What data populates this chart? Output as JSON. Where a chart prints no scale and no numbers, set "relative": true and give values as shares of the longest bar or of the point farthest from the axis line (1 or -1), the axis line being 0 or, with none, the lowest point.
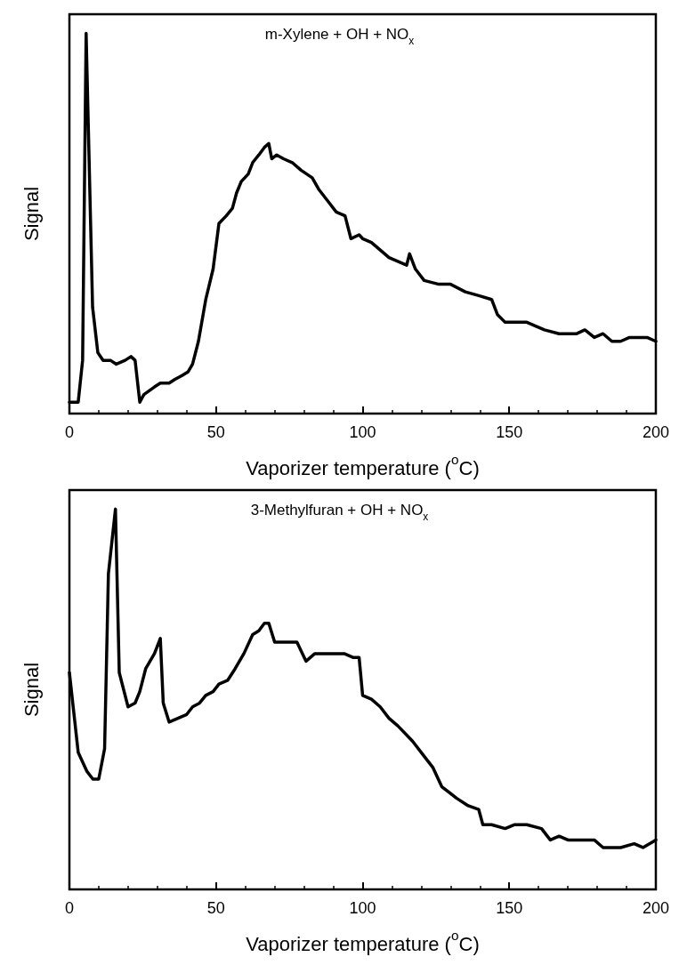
{
  "chart_data": [
    {
      "type": "line",
      "title": "m-Xylene + OH + NO$_{x}$",
      "xlabel": "Vaporizer temperature ($^{o}$C)",
      "ylabel": "Signal",
      "relative": true,
      "xlim": [
        0,
        200
      ],
      "xticks": [
        0,
        50,
        100,
        150,
        200
      ],
      "grid": false,
      "marker": "none",
      "line_style": "solid",
      "series": [
        {
          "color": "#000000",
          "x": [
            0,
            3,
            4.5,
            5.7,
            7.9,
            9.7,
            11.5,
            14,
            16,
            19,
            21,
            22.4,
            24,
            25.4,
            29,
            31,
            34,
            36,
            38.4,
            40.5,
            42,
            44,
            46.5,
            49,
            51,
            53.5,
            55.6,
            57,
            58.6,
            61,
            62.5,
            64.6,
            66.5,
            68,
            69,
            70.7,
            73,
            76,
            79,
            82.8,
            85,
            88,
            91,
            94,
            96,
            98.8,
            100,
            103,
            106,
            109,
            112,
            115,
            116,
            118,
            121,
            126,
            130,
            135,
            139.6,
            144,
            146,
            148.6,
            153,
            156,
            159,
            162,
            167,
            173,
            175.8,
            179,
            182,
            185,
            188,
            191,
            194,
            197,
            200
          ],
          "values": [
            0.03,
            0.03,
            0.14,
            1.0,
            0.28,
            0.16,
            0.14,
            0.14,
            0.13,
            0.14,
            0.15,
            0.14,
            0.03,
            0.05,
            0.07,
            0.08,
            0.08,
            0.09,
            0.1,
            0.11,
            0.13,
            0.19,
            0.3,
            0.38,
            0.5,
            0.52,
            0.54,
            0.58,
            0.61,
            0.63,
            0.66,
            0.68,
            0.7,
            0.71,
            0.67,
            0.68,
            0.67,
            0.66,
            0.64,
            0.62,
            0.59,
            0.56,
            0.53,
            0.52,
            0.46,
            0.47,
            0.46,
            0.45,
            0.43,
            0.41,
            0.4,
            0.39,
            0.42,
            0.38,
            0.35,
            0.34,
            0.34,
            0.32,
            0.31,
            0.3,
            0.26,
            0.24,
            0.24,
            0.24,
            0.23,
            0.22,
            0.21,
            0.21,
            0.22,
            0.2,
            0.21,
            0.19,
            0.19,
            0.2,
            0.2,
            0.2,
            0.19
          ]
        }
      ]
    },
    {
      "type": "line",
      "title": "3-Methylfuran + OH + NO$_{x}$",
      "xlabel": "Vaporizer temperature ($^{o}$C)",
      "ylabel": "Signal",
      "relative": true,
      "xlim": [
        0,
        200
      ],
      "xticks": [
        0,
        50,
        100,
        150,
        200
      ],
      "grid": false,
      "marker": "none",
      "line_style": "solid",
      "series": [
        {
          "color": "#000000",
          "x": [
            0,
            3,
            6,
            8,
            10,
            12,
            13.3,
            15.7,
            17,
            20,
            22.4,
            24,
            26,
            29,
            31,
            32,
            34,
            37,
            40,
            42,
            44.4,
            46.5,
            49,
            51,
            54,
            56.5,
            59.5,
            62.5,
            64.6,
            66.5,
            68,
            70,
            73,
            77.6,
            80.7,
            83.7,
            88,
            93.7,
            96.7,
            98.8,
            100,
            103,
            106,
            109,
            112,
            117,
            121,
            124,
            127,
            132,
            136,
            139.6,
            141,
            144,
            148.6,
            151.7,
            156,
            161,
            164,
            167,
            170,
            174,
            179,
            182,
            188,
            192.6,
            195.6,
            200
          ],
          "values": [
            0.57,
            0.36,
            0.31,
            0.29,
            0.29,
            0.37,
            0.83,
            1.0,
            0.57,
            0.48,
            0.49,
            0.52,
            0.58,
            0.62,
            0.66,
            0.49,
            0.44,
            0.45,
            0.46,
            0.48,
            0.49,
            0.51,
            0.52,
            0.54,
            0.55,
            0.58,
            0.62,
            0.67,
            0.68,
            0.7,
            0.7,
            0.65,
            0.65,
            0.65,
            0.6,
            0.62,
            0.62,
            0.62,
            0.61,
            0.61,
            0.51,
            0.5,
            0.48,
            0.45,
            0.43,
            0.39,
            0.35,
            0.32,
            0.27,
            0.24,
            0.22,
            0.21,
            0.17,
            0.17,
            0.16,
            0.17,
            0.17,
            0.16,
            0.13,
            0.14,
            0.13,
            0.13,
            0.13,
            0.11,
            0.11,
            0.12,
            0.11,
            0.13
          ]
        }
      ]
    }
  ]
}
